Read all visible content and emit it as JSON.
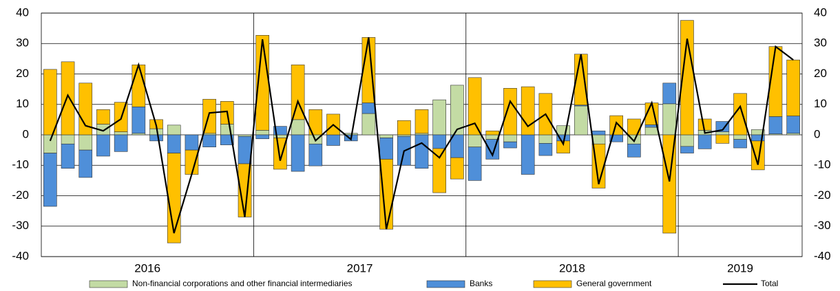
{
  "chart_data": {
    "type": "stacked-bar-line",
    "years": [
      "2016",
      "2017",
      "2018",
      "2019"
    ],
    "series": [
      {
        "name": "Non-financial corporations and other financial intermediaries",
        "color": "#c3dba4",
        "values": [
          -6,
          -3,
          -5,
          3.5,
          1,
          0.5,
          2,
          3.2,
          0,
          0.5,
          3.5,
          -0.5,
          1.5,
          -1,
          5,
          -3,
          0,
          0.5,
          7,
          -1,
          -0.5,
          0.5,
          11.5,
          16.3,
          -4,
          -1.5,
          -2.3,
          0,
          -2.8,
          3,
          9.5,
          -3,
          0,
          -3,
          2.5,
          10.2,
          -3.8,
          1.5,
          1,
          -1.5,
          1.7,
          0.3,
          0.5
        ]
      },
      {
        "name": "Banks",
        "color": "#4f8fd9",
        "values": [
          -17.5,
          -8,
          -9,
          -7,
          -5.5,
          8.7,
          -2,
          -6,
          -5,
          -4,
          -3.3,
          -9,
          -1.3,
          2.8,
          -12,
          -7.2,
          -3.5,
          -2,
          3.5,
          -7,
          -9.5,
          -11,
          -4.5,
          -7.5,
          -11,
          -6.5,
          -2,
          -13,
          -4,
          -2,
          0.3,
          1.3,
          -2.3,
          -4.3,
          0.8,
          6.8,
          -2.2,
          -4.6,
          3.4,
          -2.8,
          -2,
          5.7,
          5.7
        ]
      },
      {
        "name": "General government",
        "color": "#ffc000",
        "values": [
          21.5,
          24,
          17,
          4.8,
          9.7,
          13.8,
          3,
          -29.5,
          -8,
          11.2,
          7.5,
          -17.5,
          31.2,
          -10.3,
          18,
          8.3,
          6.8,
          0,
          21.5,
          -23,
          4.7,
          7.8,
          -14.5,
          -7,
          18.8,
          1.3,
          15.3,
          15.8,
          13.6,
          -4,
          16.7,
          -14.5,
          6.3,
          5.2,
          7.2,
          -32.3,
          37.6,
          3.7,
          -2.8,
          13.6,
          -9.5,
          23,
          18.4
        ]
      },
      {
        "name": "Total",
        "color": "#000000",
        "line": true,
        "values": [
          -2,
          13,
          3,
          1.3,
          5.2,
          23,
          3,
          -32.3,
          -13,
          7.2,
          7.7,
          -27,
          31.4,
          -8.5,
          11,
          -1.9,
          3.3,
          -1.5,
          32,
          -31,
          -5.3,
          -2.7,
          -7.5,
          1.8,
          3.8,
          -6.7,
          11,
          2.8,
          6.8,
          -3,
          26.5,
          -16.2,
          4,
          -2.1,
          10.5,
          -15.3,
          31.6,
          0.6,
          1.6,
          9.3,
          -9.8,
          29,
          24.6
        ]
      }
    ],
    "ylim": [
      -40,
      40
    ],
    "yticks": [
      -40,
      -30,
      -20,
      -10,
      0,
      10,
      20,
      30,
      40
    ],
    "grid": true
  }
}
